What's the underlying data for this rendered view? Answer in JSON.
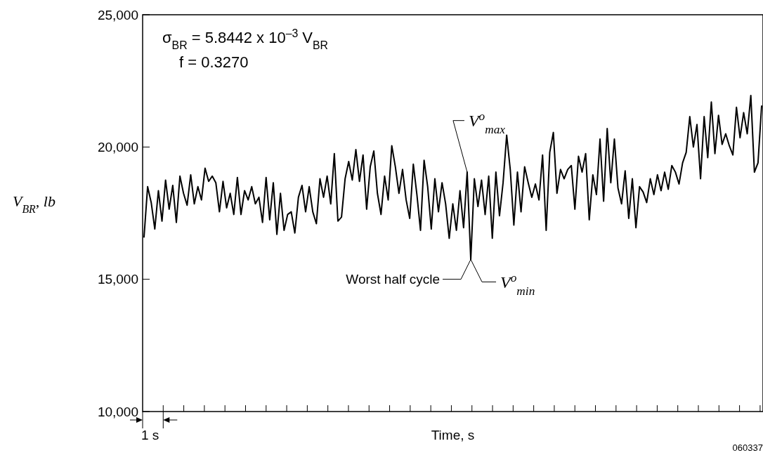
{
  "chart_data": {
    "type": "line",
    "xlabel": "Time, s",
    "ylabel": "V$_{BR}$, lb",
    "categories": [
      null,
      null,
      null,
      null,
      null,
      null,
      null,
      null,
      null,
      null,
      null,
      null,
      null,
      null,
      null,
      null,
      null,
      null,
      null,
      null,
      null,
      null,
      null,
      null,
      null,
      null,
      null,
      null,
      null,
      null,
      null,
      null,
      null,
      null,
      null,
      null,
      null,
      null,
      null,
      null,
      null,
      null,
      null,
      null,
      null,
      null,
      null,
      null,
      null,
      null,
      null,
      null,
      null,
      null,
      null,
      null,
      null,
      null,
      null,
      null,
      null,
      null,
      null,
      null,
      null,
      null,
      null,
      null,
      null,
      null,
      null,
      null,
      null,
      null,
      null,
      null,
      null,
      null,
      null,
      null,
      null,
      null,
      null,
      null,
      null,
      null,
      null,
      null,
      null,
      null,
      null,
      null,
      null,
      null,
      null,
      null,
      null,
      null,
      null,
      null,
      null,
      null,
      null,
      null,
      null,
      null,
      null,
      null,
      null,
      null,
      null,
      null,
      null,
      null,
      null,
      null,
      null,
      null,
      null,
      null,
      null,
      null,
      null,
      null,
      null,
      null,
      null,
      null,
      null,
      null,
      null,
      null,
      null,
      null,
      null,
      null,
      null,
      null,
      null,
      null,
      null,
      null,
      null,
      null,
      null,
      null,
      null,
      null,
      null,
      null,
      null,
      null,
      null,
      null,
      null,
      null,
      null,
      null,
      null,
      null,
      null,
      null,
      null,
      null,
      null,
      null,
      null,
      null,
      null,
      null,
      null,
      null,
      null
    ],
    "ylim": [
      10000,
      25000
    ],
    "yticks": [
      {
        "value": 10000,
        "label": "10,000"
      },
      {
        "value": 15000,
        "label": "15,000"
      },
      {
        "value": 20000,
        "label": "20,000"
      },
      {
        "value": 25000,
        "label": "25,000"
      }
    ],
    "grid": false,
    "marker": "none",
    "line_style": "solid",
    "series": [
      {
        "color": "#000000",
        "values": [
          16600,
          18500,
          17900,
          16900,
          18350,
          17200,
          18750,
          17650,
          18550,
          17150,
          18900,
          18250,
          17800,
          18950,
          17850,
          18500,
          18000,
          19200,
          18700,
          18900,
          18650,
          17550,
          18700,
          17700,
          18250,
          17450,
          18850,
          17450,
          18350,
          18000,
          18500,
          17850,
          18100,
          17150,
          18850,
          17250,
          18650,
          16700,
          18250,
          16850,
          17450,
          17550,
          16750,
          18100,
          18550,
          17550,
          18500,
          17550,
          17100,
          18800,
          18100,
          18900,
          17850,
          19750,
          17200,
          17350,
          18800,
          19450,
          18750,
          19900,
          18700,
          19700,
          17650,
          19250,
          19850,
          18250,
          17450,
          18900,
          18000,
          20050,
          19250,
          18250,
          19150,
          18000,
          17300,
          19350,
          18200,
          16850,
          19500,
          18500,
          16900,
          18800,
          17550,
          18650,
          17850,
          16550,
          17850,
          16850,
          18350,
          16950,
          19050,
          15750,
          18800,
          17750,
          18750,
          17450,
          18900,
          16550,
          19050,
          17400,
          18650,
          20450,
          19150,
          17050,
          19050,
          17550,
          19250,
          18650,
          18100,
          18600,
          18000,
          19700,
          16850,
          19800,
          20550,
          18250,
          19150,
          18800,
          19150,
          19300,
          17650,
          19650,
          19050,
          19750,
          17250,
          18950,
          18200,
          20300,
          17950,
          20700,
          18650,
          20300,
          18450,
          17850,
          19100,
          17300,
          18800,
          16950,
          18500,
          18300,
          17900,
          18800,
          18200,
          18950,
          18350,
          19050,
          18400,
          19300,
          19050,
          18600,
          19400,
          19800,
          21150,
          20000,
          20850,
          18800,
          21150,
          19600,
          21700,
          19750,
          21200,
          20100,
          20500,
          20050,
          19700,
          21500,
          20350,
          21300,
          20500,
          21950,
          19050,
          19400,
          21550
        ]
      }
    ],
    "annotations": [
      "σ$_{BR}$ = 5.8442 x 10$^{–3}$ V$_{BR}$",
      "f = 0.3270",
      "1 s",
      "060337",
      "Worst half cycle",
      "V$^{o}$$_{max}$",
      "V$^{o}$$_{min}$"
    ]
  }
}
